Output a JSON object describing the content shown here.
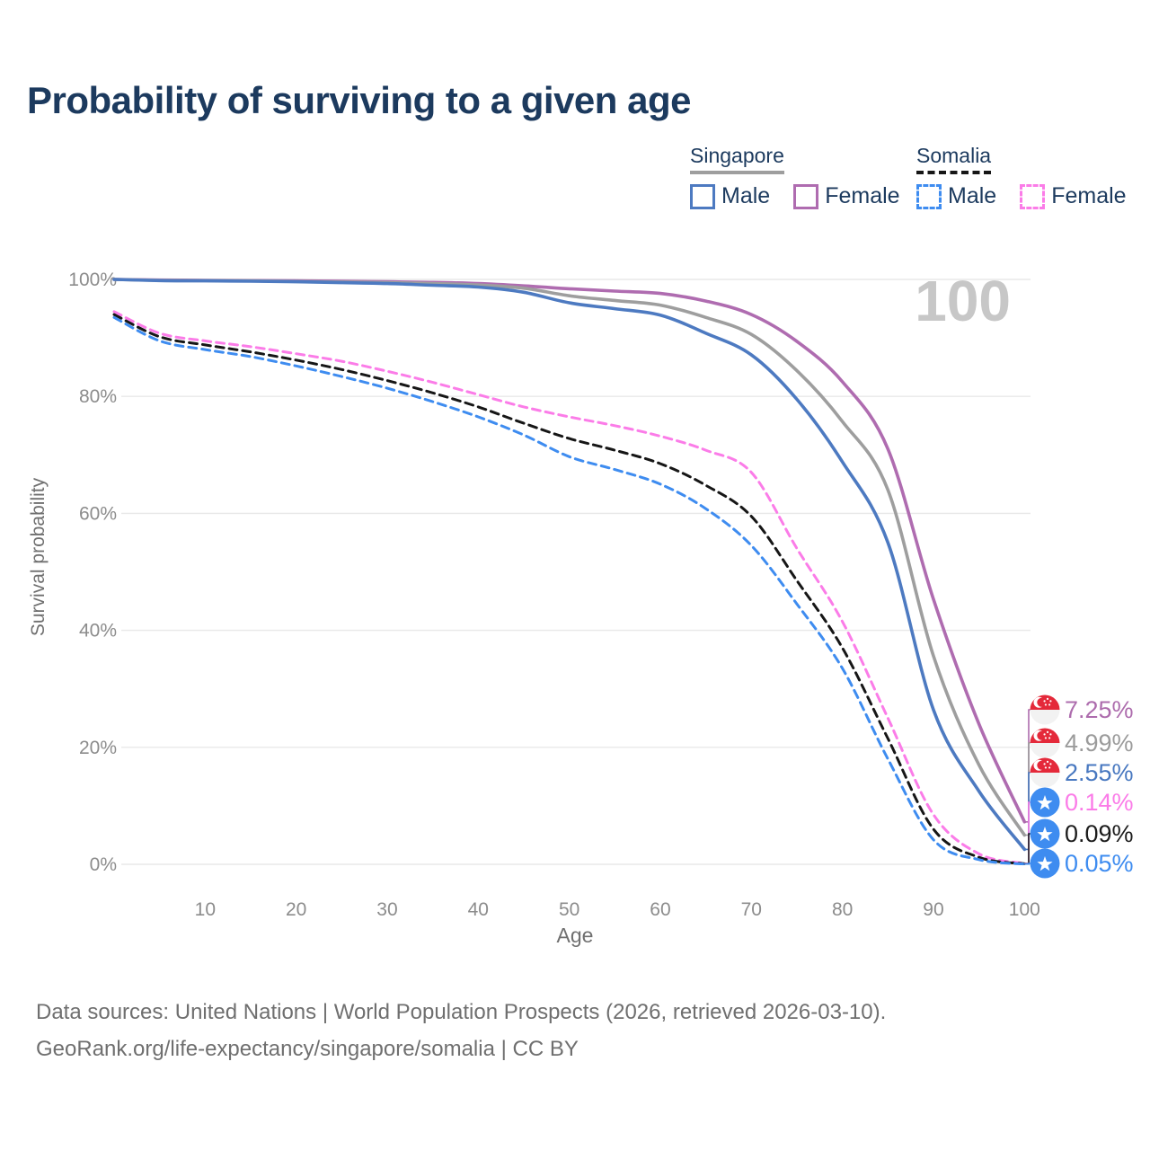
{
  "title": "Probability of surviving to a given age",
  "watermark": "100",
  "legend": {
    "groups": [
      {
        "name": "Singapore",
        "line_style": "solid",
        "underline_color": "#9e9e9e",
        "items": [
          {
            "label": "Male",
            "color": "#4d7ac1",
            "line_style": "solid"
          },
          {
            "label": "Female",
            "color": "#af6cb0",
            "line_style": "solid"
          }
        ]
      },
      {
        "name": "Somalia",
        "line_style": "dashed",
        "underline_color": "#161616",
        "items": [
          {
            "label": "Male",
            "color": "#3e8cf0",
            "line_style": "dashed"
          },
          {
            "label": "Female",
            "color": "#fb7ce8",
            "line_style": "dashed"
          }
        ]
      }
    ]
  },
  "chart_data": {
    "type": "line",
    "title": "Probability of surviving to a given age",
    "xlabel": "Age",
    "ylabel": "Survival probability",
    "xlim": [
      0,
      100
    ],
    "ylim": [
      0,
      100
    ],
    "grid": "horizontal",
    "legend_position": "top-right",
    "x_ticks": [
      10,
      20,
      30,
      40,
      50,
      60,
      70,
      80,
      90,
      100
    ],
    "y_ticks": [
      {
        "label": "0%",
        "value": 0
      },
      {
        "label": "20%",
        "value": 20
      },
      {
        "label": "40%",
        "value": 40
      },
      {
        "label": "60%",
        "value": 60
      },
      {
        "label": "80%",
        "value": 80
      },
      {
        "label": "100%",
        "value": 100
      }
    ],
    "x": [
      0,
      5,
      10,
      15,
      20,
      25,
      30,
      35,
      40,
      45,
      50,
      55,
      60,
      65,
      70,
      75,
      80,
      85,
      90,
      95,
      100
    ],
    "series": [
      {
        "name": "Singapore Female",
        "country": "Singapore",
        "sex": "Female",
        "color": "#af6cb0",
        "dash": "solid",
        "end_label": "7.25%",
        "values": [
          100,
          99.9,
          99.85,
          99.8,
          99.75,
          99.7,
          99.6,
          99.5,
          99.3,
          98.9,
          98.4,
          98.0,
          97.6,
          96.3,
          94.0,
          89.4,
          82.5,
          71.0,
          45.3,
          24.0,
          7.25
        ]
      },
      {
        "name": "Singapore Both sexes",
        "country": "Singapore",
        "sex": "Both",
        "color": "#9e9e9e",
        "dash": "solid",
        "end_label": "4.99%",
        "values": [
          100,
          99.85,
          99.8,
          99.75,
          99.65,
          99.55,
          99.45,
          99.3,
          99.05,
          98.5,
          97.2,
          96.4,
          95.6,
          93.5,
          90.6,
          84.4,
          75.7,
          64.0,
          35.6,
          17.0,
          4.99
        ]
      },
      {
        "name": "Singapore Male",
        "country": "Singapore",
        "sex": "Male",
        "color": "#4d7ac1",
        "dash": "solid",
        "end_label": "2.55%",
        "values": [
          100,
          99.8,
          99.75,
          99.7,
          99.6,
          99.45,
          99.3,
          99.0,
          98.7,
          97.8,
          96.0,
          95.0,
          93.9,
          90.8,
          87.1,
          79.5,
          68.8,
          55.0,
          26.4,
          12.5,
          2.55
        ]
      },
      {
        "name": "Somalia Female",
        "country": "Somalia",
        "sex": "Female",
        "color": "#fb7ce8",
        "dash": "dashed",
        "end_label": "0.14%",
        "values": [
          94.5,
          90.8,
          89.5,
          88.5,
          87.3,
          86.0,
          84.3,
          82.4,
          80.3,
          78.2,
          76.5,
          75.0,
          73.2,
          70.8,
          67.0,
          54.0,
          41.5,
          25.0,
          8.5,
          1.8,
          0.14
        ]
      },
      {
        "name": "Somalia Both sexes",
        "country": "Somalia",
        "sex": "Both",
        "color": "#161616",
        "dash": "dashed",
        "end_label": "0.09%",
        "values": [
          94.0,
          90.2,
          88.8,
          87.6,
          86.2,
          84.6,
          82.7,
          80.6,
          78.2,
          75.4,
          72.8,
          70.8,
          68.5,
          64.8,
          59.5,
          48.5,
          37.0,
          21.5,
          6.0,
          1.2,
          0.09
        ]
      },
      {
        "name": "Somalia Male",
        "country": "Somalia",
        "sex": "Male",
        "color": "#3e8cf0",
        "dash": "dashed",
        "end_label": "0.05%",
        "values": [
          93.5,
          89.5,
          88.0,
          86.8,
          85.2,
          83.4,
          81.4,
          79.1,
          76.5,
          73.4,
          69.7,
          67.5,
          65.0,
          60.8,
          54.5,
          44.5,
          33.5,
          18.0,
          4.2,
          0.8,
          0.05
        ]
      }
    ]
  },
  "end_labels": [
    {
      "value": "7.25%",
      "text_color": "#ad6cad",
      "flag": "singapore"
    },
    {
      "value": "4.99%",
      "text_color": "#9b9b9b",
      "flag": "singapore"
    },
    {
      "value": "2.55%",
      "text_color": "#4878c0",
      "flag": "singapore"
    },
    {
      "value": "0.14%",
      "text_color": "#fb7ce8",
      "flag": "somalia"
    },
    {
      "value": "0.09%",
      "text_color": "#1c1c1c",
      "flag": "somalia"
    },
    {
      "value": "0.05%",
      "text_color": "#3e8cf0",
      "flag": "somalia"
    }
  ],
  "flags": {
    "singapore": {
      "red": "#e4293a",
      "white": "#f2f2f2"
    },
    "somalia": {
      "blue": "#3e8cf0",
      "star": "#ffffff"
    }
  },
  "footer": {
    "line1": "Data sources: United Nations | World Population Prospects (2026, retrieved 2026-03-10).",
    "line2": "GeoRank.org/life-expectancy/singapore/somalia | CC BY"
  }
}
